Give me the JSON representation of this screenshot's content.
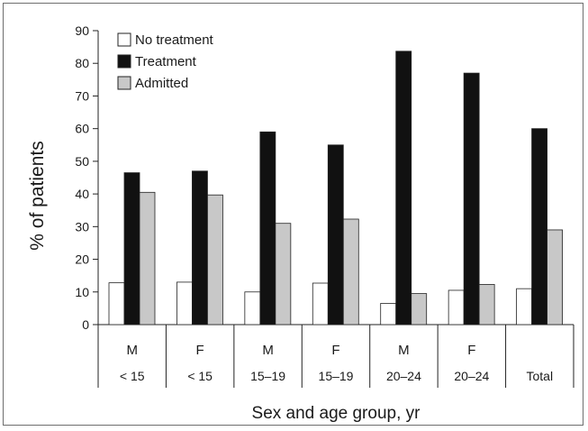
{
  "chart_data": {
    "type": "bar",
    "title": "",
    "xlabel": "Sex and age group, yr",
    "ylabel": "% of patients",
    "ylim": [
      0,
      90
    ],
    "yticks": [
      0,
      10,
      20,
      30,
      40,
      50,
      60,
      70,
      80,
      90
    ],
    "categories": [
      {
        "sex": "M",
        "age": "< 15"
      },
      {
        "sex": "F",
        "age": "< 15"
      },
      {
        "sex": "M",
        "age": "15–19"
      },
      {
        "sex": "F",
        "age": "15–19"
      },
      {
        "sex": "M",
        "age": "20–24"
      },
      {
        "sex": "F",
        "age": "20–24"
      },
      {
        "sex": "",
        "age": "Total"
      }
    ],
    "series": [
      {
        "name": "No treatment",
        "color": "#ffffff",
        "values": [
          12.8,
          13.0,
          10.0,
          12.7,
          6.5,
          10.5,
          11.0
        ]
      },
      {
        "name": "Treatment",
        "color": "#111111",
        "values": [
          46.5,
          47.0,
          59.0,
          55.0,
          83.7,
          77.0,
          60.0
        ]
      },
      {
        "name": "Admitted",
        "color": "#c8c8c8",
        "values": [
          40.5,
          39.7,
          31.0,
          32.3,
          9.5,
          12.3,
          29.0
        ]
      }
    ],
    "legend": {
      "position": "top-left"
    },
    "grid": false
  }
}
